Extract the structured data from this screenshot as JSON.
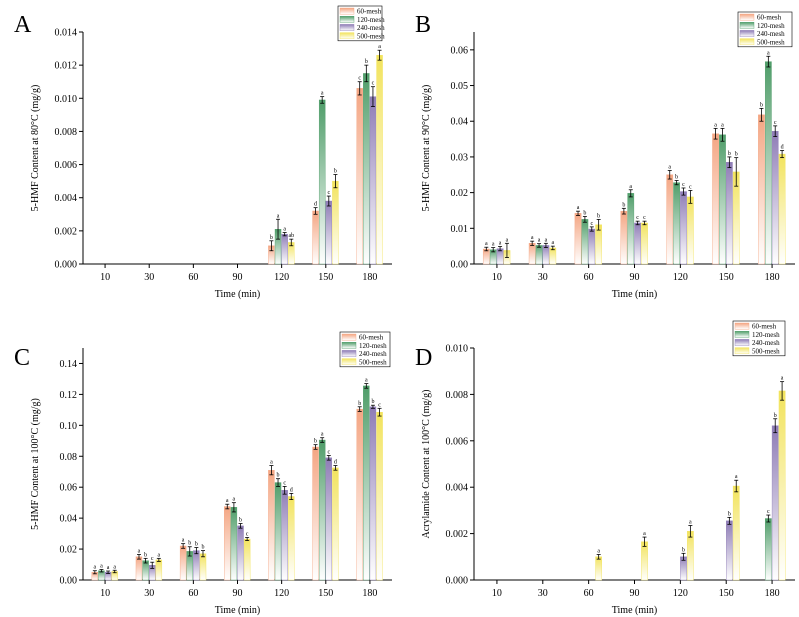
{
  "legend_labels": [
    "60-mesh",
    "120-mesh",
    "240-mesh",
    "500-mesh"
  ],
  "series_colors": [
    "#f4a582",
    "#4f9d69",
    "#8e7cb6",
    "#f2e35c"
  ],
  "chart_data": [
    {
      "panel": "A",
      "type": "bar",
      "xlabel": "Time (min)",
      "ylabel": "5-HMF Content at 80°C (mg/g)",
      "categories": [
        "10",
        "30",
        "60",
        "90",
        "120",
        "150",
        "180"
      ],
      "ylim": [
        0,
        0.014
      ],
      "yticks": [
        "0.000",
        "0.002",
        "0.004",
        "0.006",
        "0.008",
        "0.010",
        "0.012",
        "0.014"
      ],
      "series": [
        {
          "name": "60-mesh",
          "values": [
            0,
            0,
            0,
            0,
            0.0011,
            0.0032,
            0.0106
          ],
          "errors": [
            0,
            0,
            0,
            0,
            0.0003,
            0.0002,
            0.0004
          ],
          "labels": [
            "",
            "",
            "",
            "",
            "b",
            "d",
            "c"
          ]
        },
        {
          "name": "120-mesh",
          "values": [
            0,
            0,
            0,
            0,
            0.0021,
            0.0099,
            0.0115
          ],
          "errors": [
            0,
            0,
            0,
            0,
            0.0006,
            0.0002,
            0.0005
          ],
          "labels": [
            "",
            "",
            "",
            "",
            "a",
            "a",
            "b"
          ]
        },
        {
          "name": "240-mesh",
          "values": [
            0,
            0,
            0,
            0,
            0.0018,
            0.0038,
            0.0101
          ],
          "errors": [
            0,
            0,
            0,
            0,
            0.0001,
            0.0003,
            0.0006
          ],
          "labels": [
            "",
            "",
            "",
            "",
            "a",
            "c",
            "c"
          ]
        },
        {
          "name": "500-mesh",
          "values": [
            0,
            0,
            0,
            0,
            0.0013,
            0.005,
            0.0126
          ],
          "errors": [
            0,
            0,
            0,
            0,
            0.0002,
            0.0004,
            0.0003
          ],
          "labels": [
            "",
            "",
            "",
            "",
            "ab",
            "b",
            "a"
          ]
        }
      ]
    },
    {
      "panel": "B",
      "type": "bar",
      "xlabel": "Time (min)",
      "ylabel": "5-HMF Content at 90°C (mg/g)",
      "categories": [
        "10",
        "30",
        "60",
        "90",
        "120",
        "150",
        "180"
      ],
      "ylim": [
        0,
        0.065
      ],
      "yticks": [
        "0.00",
        "0.01",
        "0.02",
        "0.03",
        "0.04",
        "0.05",
        "0.06"
      ],
      "series": [
        {
          "name": "60-mesh",
          "values": [
            0.0042,
            0.0058,
            0.0142,
            0.0148,
            0.025,
            0.0365,
            0.0418
          ],
          "errors": [
            0.0005,
            0.0006,
            0.0006,
            0.0008,
            0.0012,
            0.0015,
            0.0018
          ],
          "labels": [
            "a",
            "a",
            "a",
            "b",
            "a",
            "a",
            "b"
          ]
        },
        {
          "name": "120-mesh",
          "values": [
            0.004,
            0.0052,
            0.0125,
            0.0198,
            0.0228,
            0.0362,
            0.0567
          ],
          "errors": [
            0.0006,
            0.0005,
            0.0008,
            0.001,
            0.0006,
            0.0018,
            0.0015
          ],
          "labels": [
            "a",
            "a",
            "b",
            "a",
            "b",
            "a",
            "a"
          ]
        },
        {
          "name": "240-mesh",
          "values": [
            0.0043,
            0.0052,
            0.0098,
            0.0115,
            0.0203,
            0.0285,
            0.0372
          ],
          "errors": [
            0.0006,
            0.0006,
            0.0006,
            0.0005,
            0.001,
            0.0015,
            0.0015
          ],
          "labels": [
            "a",
            "a",
            "c",
            "c",
            "c",
            "b",
            "c"
          ]
        },
        {
          "name": "500-mesh",
          "values": [
            0.0038,
            0.0045,
            0.011,
            0.0115,
            0.0188,
            0.0258,
            0.0308
          ],
          "errors": [
            0.002,
            0.0005,
            0.0015,
            0.0005,
            0.0018,
            0.004,
            0.001
          ],
          "labels": [
            "a",
            "a",
            "b",
            "c",
            "c",
            "b",
            "d"
          ]
        }
      ]
    },
    {
      "panel": "C",
      "type": "bar",
      "xlabel": "Time (min)",
      "ylabel": "5-HMF Content at 100°C (mg/g)",
      "categories": [
        "10",
        "30",
        "60",
        "90",
        "120",
        "150",
        "180"
      ],
      "ylim": [
        0,
        0.15
      ],
      "yticks": [
        "0.00",
        "0.02",
        "0.04",
        "0.06",
        "0.08",
        "0.10",
        "0.12",
        "0.14"
      ],
      "series": [
        {
          "name": "60-mesh",
          "values": [
            0.005,
            0.015,
            0.022,
            0.0475,
            0.071,
            0.086,
            0.1105
          ],
          "errors": [
            0.001,
            0.0015,
            0.0015,
            0.0015,
            0.003,
            0.0015,
            0.0015
          ],
          "labels": [
            "a",
            "a",
            "a",
            "a",
            "a",
            "b",
            "b"
          ]
        },
        {
          "name": "120-mesh",
          "values": [
            0.006,
            0.0125,
            0.0185,
            0.047,
            0.063,
            0.0905,
            0.1255
          ],
          "errors": [
            0.0008,
            0.0015,
            0.003,
            0.003,
            0.0025,
            0.0015,
            0.0015
          ],
          "labels": [
            "a",
            "b",
            "b",
            "a",
            "b",
            "a",
            "a"
          ]
        },
        {
          "name": "240-mesh",
          "values": [
            0.005,
            0.0095,
            0.019,
            0.035,
            0.058,
            0.079,
            0.112
          ],
          "errors": [
            0.0008,
            0.002,
            0.002,
            0.0015,
            0.0025,
            0.0015,
            0.001
          ],
          "labels": [
            "a",
            "c",
            "b",
            "b",
            "c",
            "c",
            "b"
          ]
        },
        {
          "name": "500-mesh",
          "values": [
            0.0055,
            0.013,
            0.017,
            0.0265,
            0.054,
            0.0725,
            0.1085
          ],
          "errors": [
            0.0008,
            0.001,
            0.002,
            0.001,
            0.002,
            0.0015,
            0.0025
          ],
          "labels": [
            "a",
            "a",
            "b",
            "c",
            "d",
            "d",
            "c"
          ]
        }
      ]
    },
    {
      "panel": "D",
      "type": "bar",
      "xlabel": "Time (min)",
      "ylabel": "Acrylamide Content at 100°C (mg/g)",
      "categories": [
        "10",
        "30",
        "60",
        "90",
        "120",
        "150",
        "180"
      ],
      "ylim": [
        0,
        0.01
      ],
      "yticks": [
        "0.000",
        "0.002",
        "0.004",
        "0.006",
        "0.008",
        "0.010"
      ],
      "series": [
        {
          "name": "60-mesh",
          "values": [
            0,
            0,
            0,
            0,
            0,
            0,
            0
          ],
          "errors": [
            0,
            0,
            0,
            0,
            0,
            0,
            0
          ],
          "labels": [
            "",
            "",
            "",
            "",
            "",
            "",
            ""
          ]
        },
        {
          "name": "120-mesh",
          "values": [
            0,
            0,
            0,
            0,
            0,
            0,
            0.00265
          ],
          "errors": [
            0,
            0,
            0,
            0,
            0,
            0,
            0.00015
          ],
          "labels": [
            "",
            "",
            "",
            "",
            "",
            "",
            "c"
          ]
        },
        {
          "name": "240-mesh",
          "values": [
            0,
            0,
            0,
            0,
            0.001,
            0.00255,
            0.00665
          ],
          "errors": [
            0,
            0,
            0,
            0,
            0.00015,
            0.00015,
            0.0003
          ],
          "labels": [
            "",
            "",
            "",
            "",
            "b",
            "b",
            "b"
          ]
        },
        {
          "name": "500-mesh",
          "values": [
            0,
            0,
            0.001,
            0.00165,
            0.0021,
            0.00405,
            0.00815
          ],
          "errors": [
            0,
            0,
            0.0001,
            0.0002,
            0.00025,
            0.00025,
            0.0004
          ],
          "labels": [
            "",
            "",
            "a",
            "a",
            "a",
            "a",
            "a"
          ]
        }
      ]
    }
  ]
}
